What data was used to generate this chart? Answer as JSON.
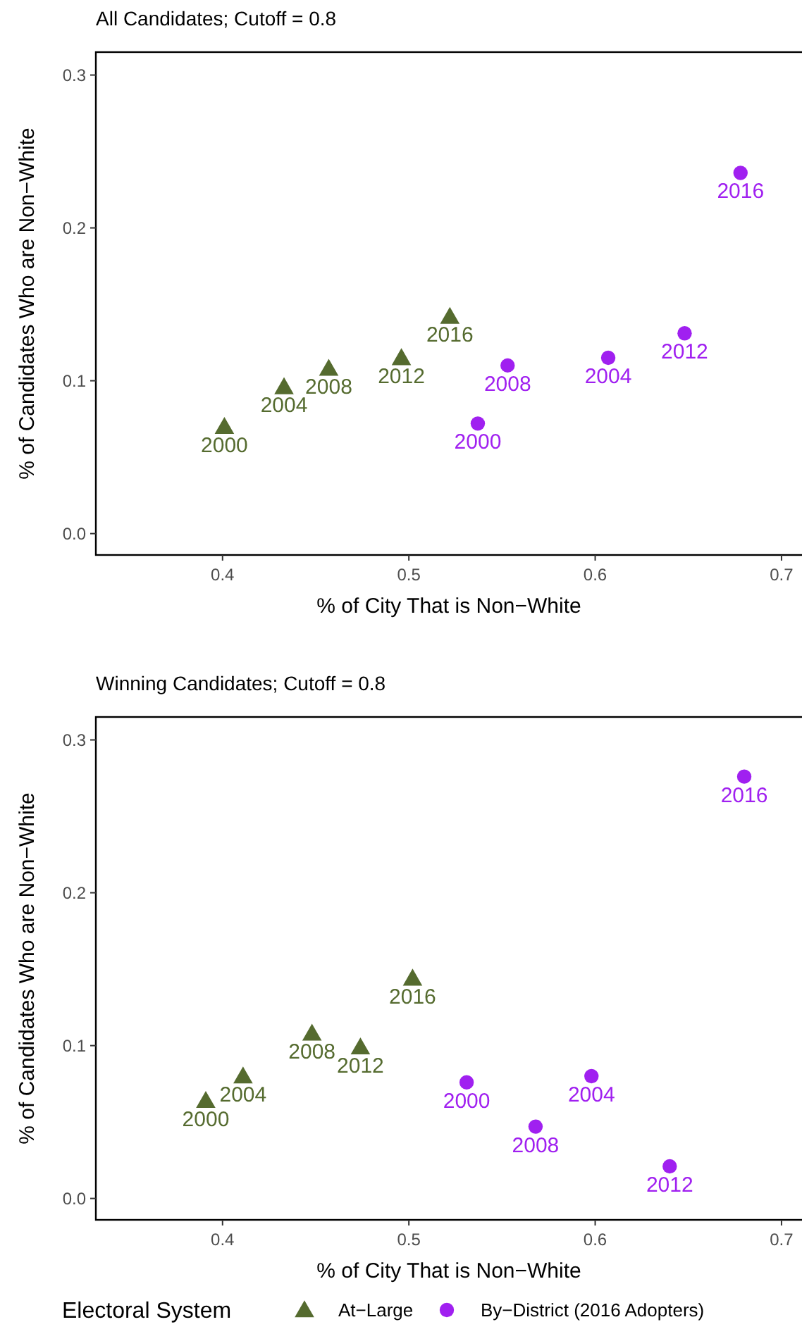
{
  "chart_data": [
    {
      "type": "scatter",
      "title": "All Candidates; Cutoff = 0.8",
      "xlabel": "% of City That is Non−White",
      "ylabel": "% of Candidates Who are Non−White",
      "xlim": [
        0.332,
        0.711
      ],
      "ylim": [
        -0.014,
        0.315
      ],
      "xticks": [
        0.4,
        0.5,
        0.6,
        0.7
      ],
      "yticks": [
        {
          "value": 0,
          "label": "0.0"
        },
        0.1,
        0.2,
        0.3
      ],
      "grid": false,
      "legend": false,
      "series": [
        {
          "color": "#556b2f",
          "marker": "triangle",
          "x": [
            0.401,
            0.433,
            0.457,
            0.496,
            0.522
          ],
          "values": [
            0.07,
            0.096,
            0.108,
            0.115,
            0.142
          ]
        },
        {
          "color": "#a020f0",
          "marker": "circle",
          "x": [
            0.537,
            0.607,
            0.553,
            0.648,
            0.678
          ],
          "values": [
            0.072,
            0.115,
            0.11,
            0.131,
            0.236
          ]
        }
      ],
      "annotations": [
        {
          "text": "2000",
          "x": 0.401,
          "y": 0.07
        },
        {
          "text": "2004",
          "x": 0.433,
          "y": 0.096
        },
        {
          "text": "2008",
          "x": 0.457,
          "y": 0.108
        },
        {
          "text": "2012",
          "x": 0.496,
          "y": 0.115
        },
        {
          "text": "2016",
          "x": 0.522,
          "y": 0.142
        },
        {
          "text": "2000",
          "x": 0.537,
          "y": 0.072
        },
        {
          "text": "2004",
          "x": 0.607,
          "y": 0.115
        },
        {
          "text": "2008",
          "x": 0.553,
          "y": 0.11
        },
        {
          "text": "2012",
          "x": 0.648,
          "y": 0.131
        },
        {
          "text": "2016",
          "x": 0.678,
          "y": 0.236
        }
      ]
    },
    {
      "type": "scatter",
      "title": "Winning Candidates; Cutoff = 0.8",
      "xlabel": "% of City That is Non−White",
      "ylabel": "% of Candidates Who are Non−White",
      "xlim": [
        0.332,
        0.711
      ],
      "ylim": [
        -0.014,
        0.315
      ],
      "xticks": [
        0.4,
        0.5,
        0.6,
        0.7
      ],
      "yticks": [
        {
          "value": 0,
          "label": "0.0"
        },
        0.1,
        0.2,
        0.3
      ],
      "grid": false,
      "legend": "bottom",
      "legend_title": "Electoral System",
      "series": [
        {
          "name": "At−Large",
          "color": "#556b2f",
          "marker": "triangle",
          "x": [
            0.391,
            0.411,
            0.448,
            0.474,
            0.502
          ],
          "values": [
            0.064,
            0.08,
            0.108,
            0.099,
            0.144
          ]
        },
        {
          "name": "By−District (2016 Adopters)",
          "color": "#a020f0",
          "marker": "circle",
          "x": [
            0.531,
            0.598,
            0.568,
            0.64,
            0.68
          ],
          "values": [
            0.076,
            0.08,
            0.047,
            0.021,
            0.276
          ]
        }
      ],
      "annotations": [
        {
          "text": "2000",
          "x": 0.391,
          "y": 0.064
        },
        {
          "text": "2004",
          "x": 0.411,
          "y": 0.08
        },
        {
          "text": "2008",
          "x": 0.448,
          "y": 0.108
        },
        {
          "text": "2012",
          "x": 0.474,
          "y": 0.099
        },
        {
          "text": "2016",
          "x": 0.502,
          "y": 0.144
        },
        {
          "text": "2000",
          "x": 0.531,
          "y": 0.076
        },
        {
          "text": "2004",
          "x": 0.598,
          "y": 0.08
        },
        {
          "text": "2008",
          "x": 0.568,
          "y": 0.047
        },
        {
          "text": "2012",
          "x": 0.64,
          "y": 0.021
        },
        {
          "text": "2016",
          "x": 0.68,
          "y": 0.276
        }
      ]
    }
  ]
}
